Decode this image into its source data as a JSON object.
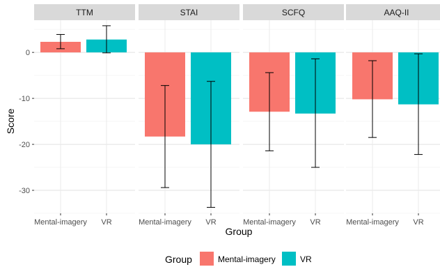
{
  "chart_data": {
    "type": "bar",
    "xlabel": "Group",
    "ylabel": "Score",
    "ylim": [
      -35,
      7
    ],
    "yticks": [
      0,
      -10,
      -20,
      -30
    ],
    "categories": [
      "Mental-imagery",
      "VR"
    ],
    "colors": {
      "Mental-imagery": "#F8766D",
      "VR": "#00BFC4"
    },
    "error_bar_color": "#000000",
    "grid": true,
    "legend": {
      "title": "Group",
      "position": "bottom",
      "entries": [
        "Mental-imagery",
        "VR"
      ]
    },
    "facets": [
      {
        "name": "TTM",
        "bars": [
          {
            "category": "Mental-imagery",
            "value": 2.3,
            "err_low": 0.8,
            "err_high": 3.9
          },
          {
            "category": "VR",
            "value": 2.8,
            "err_low": -0.1,
            "err_high": 5.8
          }
        ]
      },
      {
        "name": "STAI",
        "bars": [
          {
            "category": "Mental-imagery",
            "value": -18.3,
            "err_low": -29.4,
            "err_high": -7.2
          },
          {
            "category": "VR",
            "value": -20.0,
            "err_low": -33.7,
            "err_high": -6.3
          }
        ]
      },
      {
        "name": "SCFQ",
        "bars": [
          {
            "category": "Mental-imagery",
            "value": -12.9,
            "err_low": -21.4,
            "err_high": -4.4
          },
          {
            "category": "VR",
            "value": -13.3,
            "err_low": -25.0,
            "err_high": -1.4
          }
        ]
      },
      {
        "name": "AAQ-II",
        "bars": [
          {
            "category": "Mental-imagery",
            "value": -10.2,
            "err_low": -18.5,
            "err_high": -1.8
          },
          {
            "category": "VR",
            "value": -11.3,
            "err_low": -22.2,
            "err_high": -0.3
          }
        ]
      }
    ]
  }
}
